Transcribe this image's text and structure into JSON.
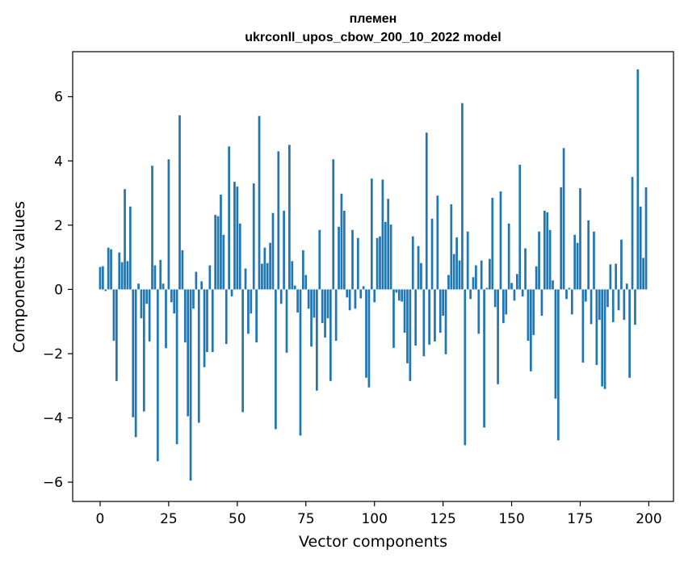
{
  "chart_data": {
    "type": "bar",
    "title": "племен",
    "subtitle": "ukrconll_upos_cbow_200_10_2022 model",
    "xlabel": "Vector components",
    "ylabel": "Components values",
    "xlim": [
      -10,
      209
    ],
    "ylim": [
      -6.6,
      7.4
    ],
    "xticks": [
      0,
      25,
      50,
      75,
      100,
      125,
      150,
      175,
      200
    ],
    "yticks": [
      -6,
      -4,
      -2,
      0,
      2,
      4,
      6
    ],
    "ytick_labels": [
      "−6",
      "−4",
      "−2",
      "0",
      "2",
      "4",
      "6"
    ],
    "grid": false,
    "bar_color": "#1f77b4",
    "x": [
      0,
      1,
      2,
      3,
      4,
      5,
      6,
      7,
      8,
      9,
      10,
      11,
      12,
      13,
      14,
      15,
      16,
      17,
      18,
      19,
      20,
      21,
      22,
      23,
      24,
      25,
      26,
      27,
      28,
      29,
      30,
      31,
      32,
      33,
      34,
      35,
      36,
      37,
      38,
      39,
      40,
      41,
      42,
      43,
      44,
      45,
      46,
      47,
      48,
      49,
      50,
      51,
      52,
      53,
      54,
      55,
      56,
      57,
      58,
      59,
      60,
      61,
      62,
      63,
      64,
      65,
      66,
      67,
      68,
      69,
      70,
      71,
      72,
      73,
      74,
      75,
      76,
      77,
      78,
      79,
      80,
      81,
      82,
      83,
      84,
      85,
      86,
      87,
      88,
      89,
      90,
      91,
      92,
      93,
      94,
      95,
      96,
      97,
      98,
      99,
      100,
      101,
      102,
      103,
      104,
      105,
      106,
      107,
      108,
      109,
      110,
      111,
      112,
      113,
      114,
      115,
      116,
      117,
      118,
      119,
      120,
      121,
      122,
      123,
      124,
      125,
      126,
      127,
      128,
      129,
      130,
      131,
      132,
      133,
      134,
      135,
      136,
      137,
      138,
      139,
      140,
      141,
      142,
      143,
      144,
      145,
      146,
      147,
      148,
      149,
      150,
      151,
      152,
      153,
      154,
      155,
      156,
      157,
      158,
      159,
      160,
      161,
      162,
      163,
      164,
      165,
      166,
      167,
      168,
      169,
      170,
      171,
      172,
      173,
      174,
      175,
      176,
      177,
      178,
      179,
      180,
      181,
      182,
      183,
      184,
      185,
      186,
      187,
      188,
      189,
      190,
      191,
      192,
      193,
      194,
      195,
      196,
      197,
      198,
      199
    ],
    "values": [
      0.7,
      0.72,
      -0.05,
      1.3,
      1.25,
      -1.6,
      -2.85,
      1.15,
      0.85,
      3.12,
      0.88,
      2.58,
      -3.98,
      -4.6,
      0.18,
      -0.9,
      -3.8,
      -0.45,
      -1.62,
      3.85,
      0.75,
      -5.35,
      0.92,
      0.18,
      -1.83,
      4.05,
      -0.4,
      -0.75,
      -4.82,
      5.42,
      1.22,
      -1.65,
      -3.95,
      -5.95,
      -0.6,
      0.55,
      -4.15,
      0.25,
      -2.42,
      -1.95,
      0.75,
      -1.95,
      2.32,
      2.28,
      2.95,
      1.7,
      -1.7,
      4.45,
      -0.22,
      3.35,
      3.2,
      2.05,
      -3.82,
      0.65,
      -1.38,
      -0.75,
      3.3,
      -1.65,
      5.4,
      0.8,
      1.3,
      0.82,
      1.45,
      2.38,
      -4.35,
      4.3,
      -0.45,
      2.45,
      -1.97,
      4.5,
      0.88,
      0.12,
      -0.72,
      -4.55,
      1.22,
      0.45,
      -0.6,
      -1.78,
      -0.88,
      -3.15,
      1.85,
      -1.05,
      -1.5,
      -0.9,
      -2.85,
      4.05,
      -1.6,
      1.95,
      2.98,
      2.45,
      -0.25,
      -0.65,
      1.85,
      -0.6,
      1.6,
      -0.28,
      0.1,
      -2.75,
      -3.05,
      3.45,
      -0.4,
      1.6,
      1.65,
      3.42,
      2.1,
      2.82,
      2.02,
      -1.82,
      -0.1,
      -0.35,
      -0.38,
      -1.35,
      -2.3,
      -2.85,
      1.65,
      -1.75,
      1.35,
      0.82,
      -2.08,
      4.88,
      -1.72,
      2.2,
      -1.62,
      2.92,
      -1.35,
      -0.82,
      -2.02,
      0.45,
      2.65,
      1.1,
      1.62,
      0.9,
      5.8,
      -4.85,
      1.8,
      -0.3,
      0.38,
      0.75,
      -1.38,
      0.9,
      -4.3,
      0.05,
      0.95,
      2.85,
      -0.55,
      -2.95,
      3.05,
      -1.05,
      -0.78,
      2.05,
      0.2,
      -0.35,
      0.48,
      3.88,
      -0.22,
      1.28,
      -1.6,
      -2.55,
      -1.42,
      0.72,
      1.8,
      -0.82,
      2.45,
      2.4,
      1.85,
      0.28,
      -3.4,
      -4.7,
      3.18,
      4.4,
      -0.3,
      0.05,
      -0.78,
      1.7,
      1.45,
      3.15,
      -2.28,
      -0.38,
      2.15,
      -1.08,
      1.8,
      -2.35,
      -0.95,
      -3.02,
      -3.1,
      -0.55,
      0.78,
      -1.02,
      0.8,
      -0.65,
      1.55,
      -0.95,
      0.18,
      -2.75,
      3.5,
      -1.1,
      6.85,
      2.58,
      0.98,
      3.18
    ]
  }
}
